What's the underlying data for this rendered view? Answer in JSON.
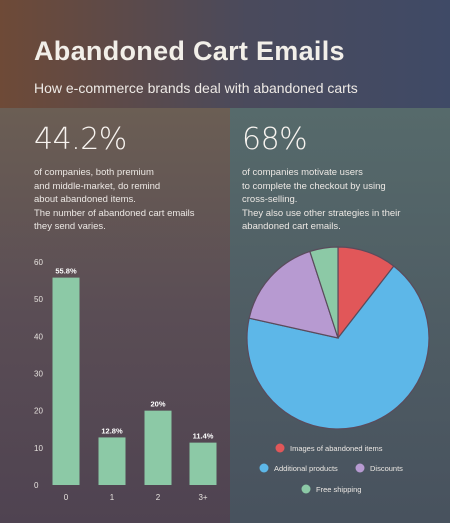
{
  "header": {
    "title": "Abandoned Cart Emails",
    "subtitle": "How e-commerce brands deal with abandoned carts"
  },
  "left": {
    "stat": "44.2%",
    "lines": [
      "of companies, both premium",
      "and middle-market, do remind",
      "about abandoned items.",
      "The number of abandoned cart emails",
      "they send varies."
    ]
  },
  "right": {
    "stat": "68%",
    "lines": [
      "of companies motivate users",
      "to complete the checkout by using",
      "cross-selling.",
      "They also use other strategies in their",
      "abandoned cart emails."
    ]
  },
  "colors": {
    "bar": "#8cc9a6",
    "images": "#e15759",
    "additional": "#5db7e8",
    "discounts": "#b79ad1",
    "shipping": "#8cc9a6"
  },
  "chart_data": [
    {
      "type": "bar",
      "categories": [
        "0",
        "1",
        "2",
        "3+"
      ],
      "values": [
        55.8,
        12.8,
        20,
        11.4
      ],
      "value_labels": [
        "55.8%",
        "12.8%",
        "20%",
        "11.4%"
      ],
      "ylim": [
        0,
        60
      ],
      "yticks": [
        "0",
        "10",
        "20",
        "30",
        "40",
        "50",
        "60"
      ],
      "grid": false
    },
    {
      "type": "pie",
      "slices": [
        {
          "name": "Images of abandoned items",
          "value": 10.5,
          "color": "#e15759"
        },
        {
          "name": "Additional products",
          "value": 68,
          "color": "#5db7e8"
        },
        {
          "name": "Discounts",
          "value": 16.5,
          "color": "#b79ad1"
        },
        {
          "name": "Free shipping",
          "value": 5,
          "color": "#8cc9a6"
        }
      ],
      "legend_rows": [
        [
          "Images of abandoned items"
        ],
        [
          "Additional products",
          "Discounts"
        ],
        [
          "Free shipping"
        ]
      ],
      "legend": "bottom"
    }
  ]
}
